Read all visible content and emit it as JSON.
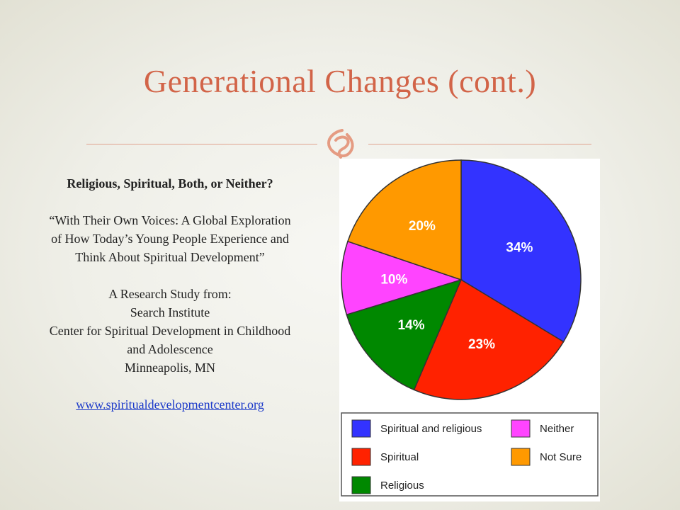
{
  "slide": {
    "title": "Generational Changes (cont.)",
    "ornament_icon": "ornament-icon",
    "accent_color": "#d26448"
  },
  "left": {
    "heading": "Religious, Spiritual, Both, or Neither?",
    "quote": "“With Their Own Voices: A Global Exploration of How Today’s Young People Experience and Think About Spiritual Development”",
    "study_lines": [
      "A Research Study from:",
      "Search Institute",
      "Center for Spiritual Development in Childhood and Adolescence",
      "Minneapolis, MN"
    ],
    "link": "www.spiritualdevelopmentcenter.org"
  },
  "chart_data": {
    "type": "pie",
    "title": "",
    "slices": [
      {
        "name": "Spiritual and religious",
        "value": 34,
        "label": "34%",
        "color": "#3333ff"
      },
      {
        "name": "Spiritual",
        "value": 23,
        "label": "23%",
        "color": "#ff2200"
      },
      {
        "name": "Religious",
        "value": 14,
        "label": "14%",
        "color": "#008800"
      },
      {
        "name": "Neither",
        "value": 10,
        "label": "10%",
        "color": "#ff44ff"
      },
      {
        "name": "Not Sure",
        "value": 20,
        "label": "20%",
        "color": "#ff9900"
      }
    ],
    "start": "12 o'clock",
    "direction": "clockwise",
    "legend": {
      "position": "bottom",
      "order": [
        "Spiritual and religious",
        "Neither",
        "Spiritual",
        "Not Sure",
        "Religious"
      ]
    }
  }
}
